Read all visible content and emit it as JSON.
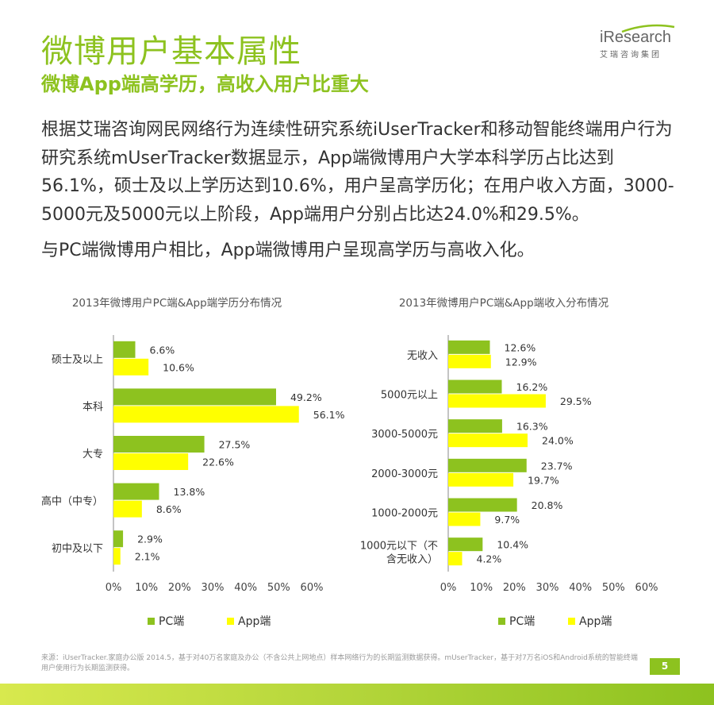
{
  "header": {
    "title": "微博用户基本属性",
    "subtitle": "微博App端高学历，高收入用户比重大",
    "logo_text": "iResearch",
    "logo_cn": "艾瑞咨询集团"
  },
  "body": {
    "paragraph1": "根据艾瑞咨询网民网络行为连续性研究系统iUserTracker和移动智能终端用户行为研究系统mUserTracker数据显示，App端微博用户大学本科学历占比达到56.1%，硕士及以上学历达到10.6%，用户呈高学历化；在用户收入方面，3000-5000元及5000元以上阶段，App端用户分别占比达24.0%和29.5%。",
    "paragraph2": "与PC端微博用户相比，App端微博用户呈现高学历与高收入化。"
  },
  "colors": {
    "accent": "#8dc21f",
    "pc": "#8dc21f",
    "app": "#ffff00",
    "axis": "#888888"
  },
  "chart_data": [
    {
      "type": "bar",
      "orientation": "horizontal",
      "title": "2013年微博用户PC端&App端学历分布情况",
      "categories": [
        "硕士及以上",
        "本科",
        "大专",
        "高中（中专）",
        "初中及以下"
      ],
      "series": [
        {
          "name": "PC端",
          "values": [
            6.6,
            49.2,
            27.5,
            13.8,
            2.9
          ],
          "labels": [
            "6.6%",
            "49.2%",
            "27.5%",
            "13.8%",
            "2.9%"
          ]
        },
        {
          "name": "App端",
          "values": [
            10.6,
            56.1,
            22.6,
            8.6,
            2.1
          ],
          "labels": [
            "10.6%",
            "56.1%",
            "22.6%",
            "8.6%",
            "2.1%"
          ]
        }
      ],
      "xlim": [
        0,
        60
      ],
      "xticks": [
        "0%",
        "10%",
        "20%",
        "30%",
        "40%",
        "50%",
        "60%"
      ],
      "legend": "bottom"
    },
    {
      "type": "bar",
      "orientation": "horizontal",
      "title": "2013年微博用户PC端&App端收入分布情况",
      "categories": [
        "无收入",
        "5000元以上",
        "3000-5000元",
        "2000-3000元",
        "1000-2000元",
        "1000元以下（不含无收入）"
      ],
      "category_lines": [
        [
          "无收入"
        ],
        [
          "5000元以上"
        ],
        [
          "3000-5000元"
        ],
        [
          "2000-3000元"
        ],
        [
          "1000-2000元"
        ],
        [
          "1000元以下（不",
          "含无收入）"
        ]
      ],
      "series": [
        {
          "name": "PC端",
          "values": [
            12.6,
            16.2,
            16.3,
            23.7,
            20.8,
            10.4
          ],
          "labels": [
            "12.6%",
            "16.2%",
            "16.3%",
            "23.7%",
            "20.8%",
            "10.4%"
          ]
        },
        {
          "name": "App端",
          "values": [
            12.9,
            29.5,
            24.0,
            19.7,
            9.7,
            4.2
          ],
          "labels": [
            "12.9%",
            "29.5%",
            "24.0%",
            "19.7%",
            "9.7%",
            "4.2%"
          ]
        }
      ],
      "xlim": [
        0,
        60
      ],
      "xticks": [
        "0%",
        "10%",
        "20%",
        "30%",
        "40%",
        "50%",
        "60%"
      ],
      "legend": "bottom"
    }
  ],
  "footer": {
    "source": "来源：iUserTracker.家庭办公版 2014.5，基于对40万名家庭及办公（不含公共上网地点）样本网络行为的长期监测数据获得。mUserTracker，基于对7万名iOS和Android系统的智能终端用户使用行为长期监测获得。",
    "page_number": "5"
  }
}
